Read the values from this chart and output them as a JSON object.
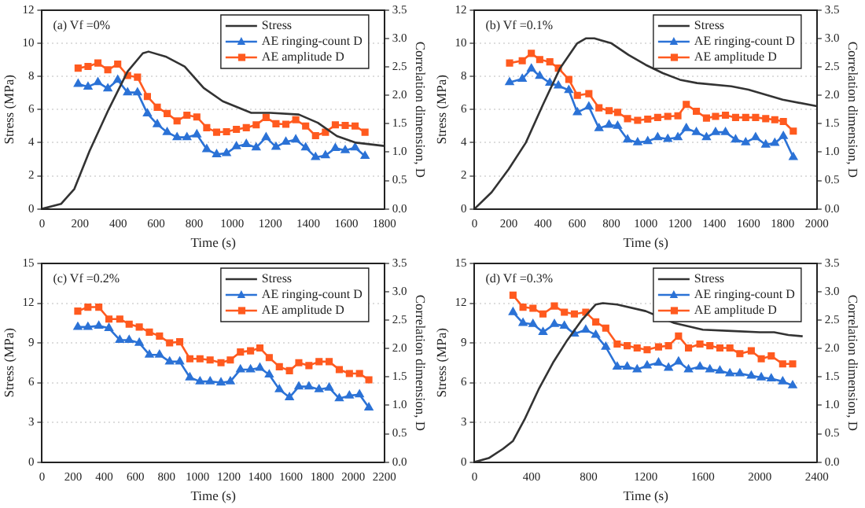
{
  "chart_data": [
    {
      "type": "line",
      "title": "(a) Vf =0%",
      "xlabel": "Time (s)",
      "ylabel": "Stress (MPa)",
      "y2label": "Correlation dimension, D",
      "legend": "top right",
      "grid": "y",
      "xlim": [
        0,
        1800
      ],
      "xticks": [
        0,
        200,
        400,
        600,
        800,
        1000,
        1200,
        1400,
        1600,
        1800
      ],
      "ylim": [
        0,
        12
      ],
      "yticks": [
        0,
        2,
        4,
        6,
        8,
        10,
        12
      ],
      "y2lim": [
        0,
        3.5
      ],
      "y2ticks": [
        {
          "value": 0,
          "label": "0.0"
        },
        0.5,
        {
          "value": 1,
          "label": "1.0"
        },
        1.5,
        {
          "value": 2,
          "label": "2.0"
        },
        2.5,
        {
          "value": 3,
          "label": "3.0"
        },
        3.5
      ],
      "series": [
        {
          "name": "Stress",
          "color": "#333333",
          "marker": "none",
          "x": [
            0,
            100,
            170,
            250,
            350,
            450,
            530,
            560,
            650,
            750,
            850,
            950,
            1100,
            1200,
            1350,
            1450,
            1550,
            1650,
            1800
          ],
          "values": [
            0,
            0.3,
            1.2,
            3.5,
            6,
            8.3,
            9.4,
            9.5,
            9.2,
            8.6,
            7.3,
            6.5,
            5.8,
            5.8,
            5.7,
            5.2,
            4.4,
            4.0,
            3.8
          ]
        },
        {
          "name": "AE ringing-count D",
          "color": "#2b72d6",
          "marker": "triangle",
          "axis": "y2",
          "x": [
            190,
            242,
            294,
            346,
            398,
            450,
            502,
            554,
            606,
            658,
            710,
            762,
            814,
            866,
            918,
            970,
            1022,
            1074,
            1126,
            1178,
            1230,
            1282,
            1334,
            1386,
            1438,
            1490,
            1542,
            1594,
            1646,
            1698
          ],
          "values": [
            2.2,
            2.15,
            2.23,
            2.12,
            2.27,
            2.05,
            2.05,
            1.68,
            1.49,
            1.35,
            1.26,
            1.26,
            1.31,
            1.05,
            0.96,
            0.98,
            1.1,
            1.14,
            1.08,
            1.26,
            1.09,
            1.18,
            1.22,
            1.08,
            0.91,
            0.94,
            1.07,
            1.03,
            1.08,
            0.93
          ]
        },
        {
          "name": "AE amplitude D",
          "color": "#ff5a1f",
          "marker": "square",
          "axis": "y2",
          "x": [
            190,
            242,
            294,
            346,
            398,
            450,
            502,
            554,
            606,
            658,
            710,
            762,
            814,
            866,
            918,
            970,
            1022,
            1074,
            1126,
            1178,
            1230,
            1282,
            1334,
            1386,
            1438,
            1490,
            1542,
            1594,
            1646,
            1698
          ],
          "values": [
            2.48,
            2.51,
            2.57,
            2.45,
            2.55,
            2.35,
            2.32,
            1.98,
            1.79,
            1.68,
            1.55,
            1.65,
            1.62,
            1.43,
            1.35,
            1.36,
            1.4,
            1.43,
            1.48,
            1.61,
            1.5,
            1.49,
            1.57,
            1.46,
            1.29,
            1.35,
            1.48,
            1.47,
            1.46,
            1.35
          ]
        }
      ]
    },
    {
      "type": "line",
      "title": "(b) Vf =0.1%",
      "xlabel": "Time (s)",
      "ylabel": "Stress (MPa)",
      "y2label": "Correlation dimension, D",
      "legend": "top right",
      "grid": "y",
      "xlim": [
        0,
        2000
      ],
      "xticks": [
        0,
        200,
        400,
        600,
        800,
        1000,
        1200,
        1400,
        1600,
        1800,
        2000
      ],
      "ylim": [
        0,
        12
      ],
      "yticks": [
        0,
        2,
        4,
        6,
        8,
        10,
        12
      ],
      "y2lim": [
        0,
        3.5
      ],
      "y2ticks": [
        {
          "value": 0,
          "label": "0.0"
        },
        0.5,
        {
          "value": 1,
          "label": "1.0"
        },
        1.5,
        {
          "value": 2,
          "label": "2.0"
        },
        2.5,
        {
          "value": 3,
          "label": "3.0"
        },
        3.5
      ],
      "series": [
        {
          "name": "Stress",
          "color": "#333333",
          "marker": "none",
          "x": [
            0,
            100,
            200,
            300,
            400,
            500,
            600,
            650,
            700,
            800,
            900,
            1000,
            1100,
            1200,
            1300,
            1500,
            1600,
            1800,
            2000
          ],
          "values": [
            0,
            1,
            2.4,
            4,
            6.3,
            8.5,
            10,
            10.3,
            10.3,
            10,
            9.3,
            8.7,
            8.2,
            7.8,
            7.6,
            7.4,
            7.2,
            6.6,
            6.2
          ]
        },
        {
          "name": "AE ringing-count D",
          "color": "#2b72d6",
          "marker": "triangle",
          "axis": "y2",
          "x": [
            205,
            279,
            332,
            381,
            440,
            490,
            551,
            601,
            668,
            727,
            786,
            836,
            894,
            953,
            1012,
            1070,
            1129,
            1188,
            1237,
            1296,
            1355,
            1408,
            1466,
            1525,
            1584,
            1642,
            1701,
            1754,
            1804,
            1862
          ],
          "values": [
            2.23,
            2.29,
            2.47,
            2.34,
            2.22,
            2.17,
            2.09,
            1.7,
            1.8,
            1.42,
            1.48,
            1.46,
            1.22,
            1.17,
            1.19,
            1.26,
            1.23,
            1.26,
            1.42,
            1.35,
            1.26,
            1.35,
            1.35,
            1.22,
            1.17,
            1.26,
            1.13,
            1.16,
            1.28,
            0.91
          ]
        },
        {
          "name": "AE amplitude D",
          "color": "#ff5a1f",
          "marker": "square",
          "axis": "y2",
          "x": [
            205,
            279,
            332,
            381,
            440,
            490,
            551,
            601,
            668,
            727,
            786,
            836,
            894,
            953,
            1012,
            1070,
            1129,
            1188,
            1237,
            1296,
            1355,
            1408,
            1466,
            1525,
            1584,
            1642,
            1701,
            1754,
            1804,
            1862
          ],
          "values": [
            2.57,
            2.61,
            2.74,
            2.63,
            2.59,
            2.48,
            2.28,
            2.0,
            2.03,
            1.78,
            1.73,
            1.7,
            1.59,
            1.56,
            1.58,
            1.61,
            1.63,
            1.64,
            1.84,
            1.72,
            1.6,
            1.63,
            1.65,
            1.61,
            1.61,
            1.61,
            1.59,
            1.57,
            1.54,
            1.37
          ]
        }
      ]
    },
    {
      "type": "line",
      "title": "(c) Vf =0.2%",
      "xlabel": "Time (s)",
      "ylabel": "Stress (MPa)",
      "y2label": "Correlation dimension, D",
      "legend": "top right",
      "grid": "y",
      "xlim": [
        0,
        2200
      ],
      "xticks": [
        0,
        200,
        400,
        600,
        800,
        1000,
        1200,
        1400,
        1600,
        1800,
        2000,
        2200
      ],
      "ylim": [
        0,
        15
      ],
      "yticks": [
        0,
        3,
        6,
        9,
        12,
        15
      ],
      "y2lim": [
        0,
        3.5
      ],
      "y2ticks": [
        {
          "value": 0,
          "label": "0.0"
        },
        0.5,
        {
          "value": 1,
          "label": "1.0"
        },
        1.5,
        {
          "value": 2,
          "label": "2.0"
        },
        2.5,
        {
          "value": 3,
          "label": "3.0"
        },
        3.5
      ],
      "series": [
        {
          "name": "Stress",
          "color": "#333333",
          "marker": "none"
        },
        {
          "name": "AE ringing-count D",
          "color": "#2b72d6",
          "marker": "triangle",
          "axis": "y2",
          "x": [
            230,
            295,
            365,
            430,
            500,
            560,
            625,
            690,
            755,
            820,
            885,
            950,
            1015,
            1080,
            1150,
            1210,
            1275,
            1340,
            1400,
            1460,
            1525,
            1590,
            1650,
            1715,
            1780,
            1845,
            1910,
            1975,
            2040,
            2100
          ],
          "values": [
            2.38,
            2.38,
            2.4,
            2.36,
            2.15,
            2.15,
            2.1,
            1.89,
            1.89,
            1.77,
            1.77,
            1.49,
            1.42,
            1.42,
            1.4,
            1.42,
            1.63,
            1.63,
            1.66,
            1.54,
            1.28,
            1.14,
            1.33,
            1.33,
            1.28,
            1.31,
            1.12,
            1.17,
            1.19,
            0.96
          ]
        },
        {
          "name": "AE amplitude D",
          "color": "#ff5a1f",
          "marker": "square",
          "axis": "y2",
          "x": [
            230,
            295,
            365,
            430,
            500,
            560,
            625,
            690,
            755,
            820,
            885,
            950,
            1015,
            1080,
            1150,
            1210,
            1275,
            1340,
            1400,
            1460,
            1525,
            1590,
            1650,
            1715,
            1780,
            1845,
            1910,
            1975,
            2040,
            2100
          ],
          "values": [
            2.66,
            2.73,
            2.73,
            2.52,
            2.52,
            2.43,
            2.38,
            2.29,
            2.22,
            2.1,
            2.12,
            1.82,
            1.82,
            1.8,
            1.75,
            1.8,
            1.94,
            1.96,
            2.01,
            1.84,
            1.68,
            1.61,
            1.75,
            1.7,
            1.77,
            1.77,
            1.63,
            1.56,
            1.56,
            1.45
          ]
        }
      ]
    },
    {
      "type": "line",
      "title": "(d) Vf =0.3%",
      "xlabel": "Time (s)",
      "ylabel": "Stress (MPa)",
      "y2label": "Correlation dimension, D",
      "legend": "top right",
      "grid": "y",
      "xlim": [
        0,
        2400
      ],
      "xticks": [
        0,
        400,
        800,
        1200,
        1600,
        2000,
        2400
      ],
      "ylim": [
        0,
        15
      ],
      "yticks": [
        0,
        3,
        6,
        9,
        12,
        15
      ],
      "y2lim": [
        0,
        3.5
      ],
      "y2ticks": [
        {
          "value": 0,
          "label": "0.0"
        },
        0.5,
        {
          "value": 1,
          "label": "1.0"
        },
        1.5,
        {
          "value": 2,
          "label": "2.0"
        },
        2.5,
        {
          "value": 3,
          "label": "3.0"
        },
        3.5
      ],
      "series": [
        {
          "name": "Stress",
          "color": "#333333",
          "marker": "none",
          "x": [
            0,
            100,
            200,
            270,
            350,
            450,
            550,
            650,
            750,
            850,
            900,
            1000,
            1200,
            1400,
            1600,
            1800,
            2000,
            2100,
            2200,
            2300
          ],
          "values": [
            0,
            0.3,
            1.0,
            1.6,
            3.2,
            5.5,
            7.5,
            9.2,
            10.7,
            11.9,
            12,
            11.9,
            11.4,
            10.5,
            10.0,
            9.9,
            9.8,
            9.8,
            9.6,
            9.5
          ]
        },
        {
          "name": "AE ringing-count D",
          "color": "#2b72d6",
          "marker": "triangle",
          "axis": "y2",
          "x": [
            270,
            340,
            410,
            480,
            560,
            630,
            700,
            780,
            850,
            920,
            1000,
            1070,
            1140,
            1210,
            1290,
            1360,
            1430,
            1500,
            1580,
            1650,
            1720,
            1790,
            1860,
            1940,
            2010,
            2080,
            2160,
            2230
          ],
          "values": [
            2.64,
            2.45,
            2.43,
            2.29,
            2.43,
            2.4,
            2.26,
            2.33,
            2.24,
            2.03,
            1.68,
            1.68,
            1.63,
            1.7,
            1.75,
            1.66,
            1.77,
            1.63,
            1.68,
            1.63,
            1.61,
            1.56,
            1.56,
            1.52,
            1.49,
            1.47,
            1.42,
            1.35
          ]
        },
        {
          "name": "AE amplitude D",
          "color": "#ff5a1f",
          "marker": "square",
          "axis": "y2",
          "x": [
            270,
            340,
            410,
            480,
            560,
            630,
            700,
            780,
            850,
            920,
            1000,
            1070,
            1140,
            1210,
            1290,
            1360,
            1430,
            1500,
            1580,
            1650,
            1720,
            1790,
            1860,
            1940,
            2010,
            2080,
            2160,
            2230
          ],
          "values": [
            2.94,
            2.73,
            2.71,
            2.61,
            2.75,
            2.64,
            2.61,
            2.64,
            2.47,
            2.36,
            2.08,
            2.05,
            2.01,
            1.98,
            2.03,
            2.05,
            2.22,
            2.01,
            2.08,
            2.05,
            2.01,
            2.01,
            1.91,
            1.96,
            1.82,
            1.87,
            1.73,
            1.73
          ]
        }
      ]
    }
  ]
}
